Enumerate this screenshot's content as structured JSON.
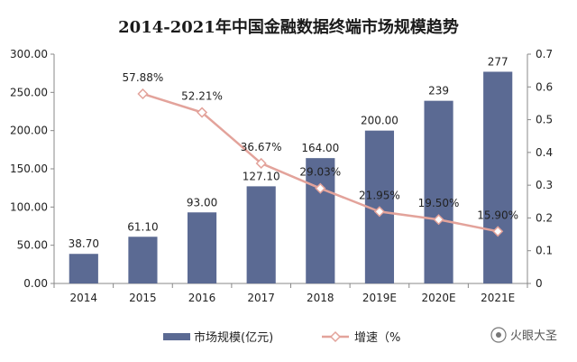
{
  "chart_data": {
    "type": "bar",
    "title": "2014-2021年中国金融数据终端市场规模趋势",
    "categories": [
      "2014",
      "2015",
      "2016",
      "2017",
      "2018",
      "2019E",
      "2020E",
      "2021E"
    ],
    "series": [
      {
        "name": "市场规模(亿元)",
        "type": "bar",
        "axis": "left",
        "values": [
          38.7,
          61.1,
          93.0,
          127.1,
          164.0,
          200.0,
          239,
          277
        ],
        "labels": [
          "38.70",
          "61.10",
          "93.00",
          "127.10",
          "164.00",
          "200.00",
          "239",
          "277"
        ],
        "color": "#5b6a93"
      },
      {
        "name": "增速（%",
        "type": "line",
        "axis": "right",
        "values": [
          null,
          0.5788,
          0.5221,
          0.3667,
          0.2903,
          0.2195,
          0.195,
          0.159
        ],
        "labels": [
          "",
          "57.88%",
          "52.21%",
          "36.67%",
          "29.03%",
          "21.95%",
          "19.50%",
          "15.90%"
        ],
        "color": "#e3a39b",
        "marker": "diamond"
      }
    ],
    "y_left": {
      "min": 0,
      "max": 300,
      "ticks": [
        "0.00",
        "50.00",
        "100.00",
        "150.00",
        "200.00",
        "250.00",
        "300.00"
      ]
    },
    "y_right": {
      "min": 0,
      "max": 0.7,
      "ticks": [
        "0",
        "0.1",
        "0.2",
        "0.3",
        "0.4",
        "0.5",
        "0.6",
        "0.7"
      ]
    },
    "grid": false,
    "legend": "bottom"
  },
  "watermark": "火眼大圣"
}
